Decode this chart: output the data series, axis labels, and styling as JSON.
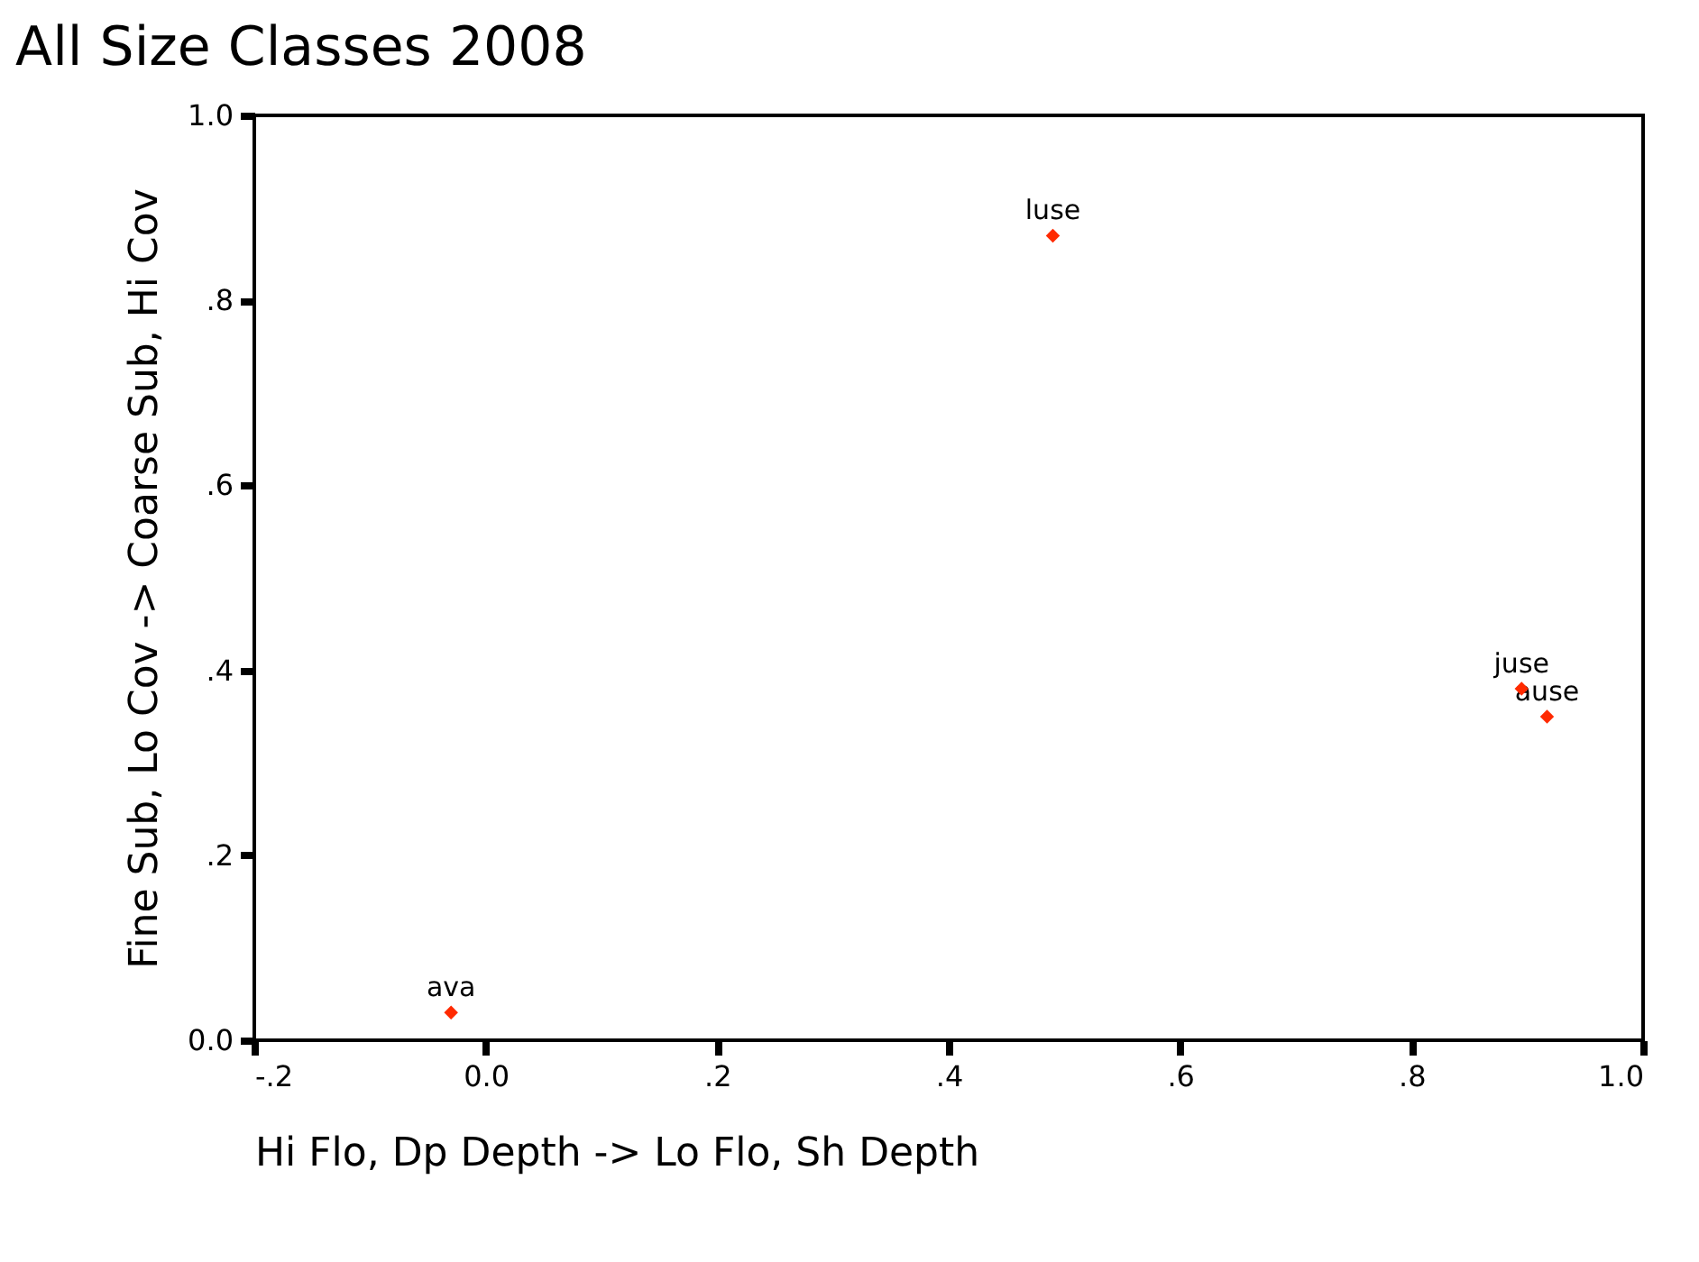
{
  "chart_data": {
    "type": "scatter",
    "title": "All Size Classes 2008",
    "xlabel": "Hi Flo, Dp Depth -> Lo Flo, Sh Depth",
    "ylabel": "Fine Sub, Lo Cov -> Coarse Sub, Hi Cov",
    "x": [
      -0.03,
      0.49,
      0.895,
      0.917
    ],
    "series": [
      {
        "color": "#ff2a00",
        "values": [
          0.03,
          0.87,
          0.38,
          0.35
        ]
      }
    ],
    "marker": "diamond",
    "grid": false,
    "xlim": [
      -0.2,
      1.0
    ],
    "ylim": [
      0.0,
      1.0
    ],
    "xticks": [
      {
        "value": -0.2,
        "label": "-.2"
      },
      {
        "value": 0.0,
        "label": "0.0"
      },
      {
        "value": 0.2,
        "label": ".2"
      },
      {
        "value": 0.4,
        "label": ".4"
      },
      {
        "value": 0.6,
        "label": ".6"
      },
      {
        "value": 0.8,
        "label": ".8"
      },
      {
        "value": 1.0,
        "label": "1.0"
      }
    ],
    "yticks": [
      {
        "value": 0.0,
        "label": "0.0"
      },
      {
        "value": 0.2,
        "label": ".2"
      },
      {
        "value": 0.4,
        "label": ".4"
      },
      {
        "value": 0.6,
        "label": ".6"
      },
      {
        "value": 0.8,
        "label": ".8"
      },
      {
        "value": 1.0,
        "label": "1.0"
      }
    ],
    "annotations": [
      {
        "text": "ava",
        "x": -0.03,
        "y": 0.03
      },
      {
        "text": "luse",
        "x": 0.49,
        "y": 0.87
      },
      {
        "text": "juse",
        "x": 0.895,
        "y": 0.38
      },
      {
        "text": "ause",
        "x": 0.917,
        "y": 0.35
      }
    ]
  }
}
